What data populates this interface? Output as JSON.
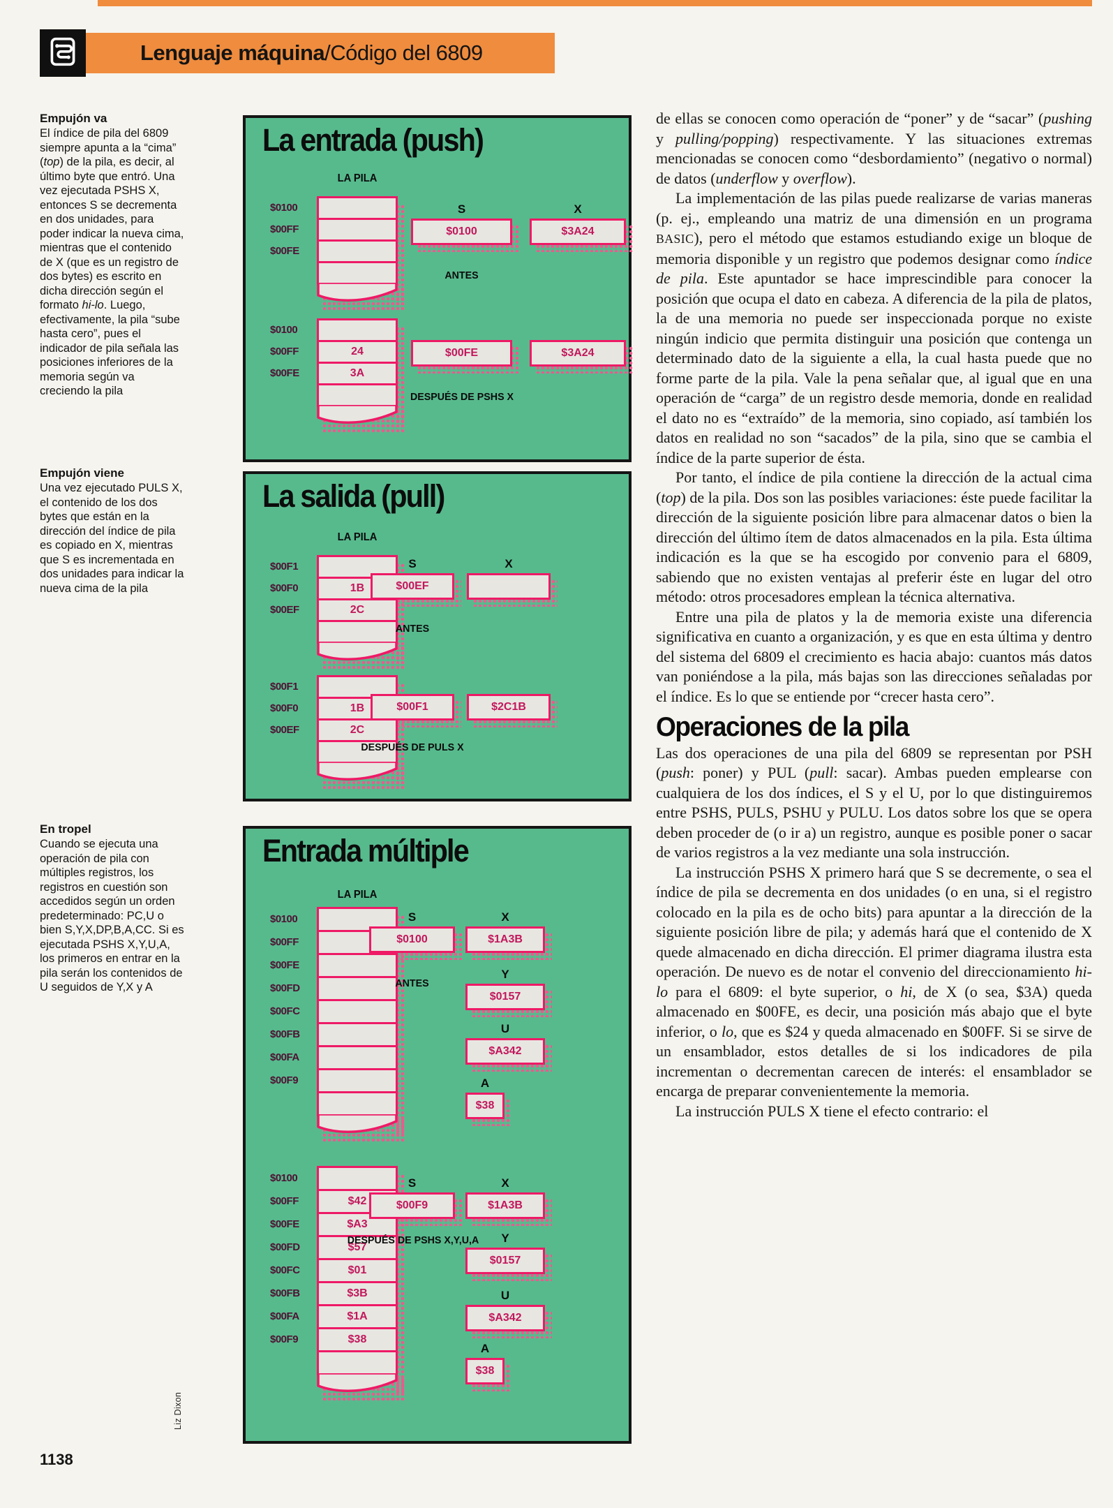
{
  "page": {
    "number": "1138",
    "credit": "Liz Dixon"
  },
  "header": {
    "title_bold": "Lenguaje máquina",
    "title_rest": "/Código del 6809",
    "accent": "#ef8c3e",
    "panel_green": "#57ba8d",
    "diagram_pink": "#ee1a66"
  },
  "sidebar": {
    "notes": [
      {
        "heading": "Empujón va",
        "body": [
          {
            "t": "El índice de pila del 6809 siempre apunta a la “cima” ("
          },
          {
            "t": "top",
            "s": "i"
          },
          {
            "t": ") de la pila, es decir, al último byte que entró. Una vez ejecutada PSHS X, entonces S se decrementa en dos unidades, para poder indicar la nueva cima, mientras que el contenido de X (que es un registro de dos bytes) es escrito en dicha dirección según el formato "
          },
          {
            "t": "hi-lo",
            "s": "i"
          },
          {
            "t": ". Luego, efectivamente, la pila “sube hasta cero”, pues el indicador de pila señala las posiciones inferiores de la memoria según va creciendo la pila"
          }
        ]
      },
      {
        "heading": "Empujón viene",
        "body": [
          {
            "t": "Una vez ejecutado PULS X, el contenido de los dos bytes que están en la dirección del índice de pila es copiado en X, mientras que S es incrementada en dos unidades para indicar la nueva cima de la pila"
          }
        ]
      },
      {
        "heading": "En tropel",
        "body": [
          {
            "t": "Cuando se ejecuta una operación de pila con múltiples registros, los registros en cuestión son accedidos según un orden predeterminado: PC,U o bien S,Y,X,DP,B,A,CC. Si es ejecutada PSHS X,Y,U,A, los primeros en entrar en la pila serán los contenidos de U seguidos de Y,X y A"
          }
        ]
      }
    ]
  },
  "panels": [
    {
      "title": "La entrada (push)",
      "stack_label": "LA PILA",
      "diagrams": [
        {
          "rows": [
            {
              "addr": "$0100",
              "val": ""
            },
            {
              "addr": "$00FF",
              "val": ""
            },
            {
              "addr": "$00FE",
              "val": ""
            },
            {
              "addr": "",
              "val": ""
            }
          ],
          "regs": {
            "s": {
              "name": "S",
              "val": "$0100"
            },
            "x": {
              "name": "X",
              "val": "$3A24"
            }
          },
          "caption": "ANTES"
        },
        {
          "rows": [
            {
              "addr": "$0100",
              "val": ""
            },
            {
              "addr": "$00FF",
              "val": "24"
            },
            {
              "addr": "$00FE",
              "val": "3A"
            },
            {
              "addr": "",
              "val": ""
            }
          ],
          "regs": {
            "s": {
              "val": "$00FE"
            },
            "x": {
              "val": "$3A24"
            }
          },
          "caption": "DESPUÉS DE PSHS X"
        }
      ]
    },
    {
      "title": "La salida (pull)",
      "stack_label": "LA PILA",
      "diagrams": [
        {
          "rows": [
            {
              "addr": "$00F1",
              "val": ""
            },
            {
              "addr": "$00F0",
              "val": "1B"
            },
            {
              "addr": "$00EF",
              "val": "2C"
            },
            {
              "addr": "",
              "val": ""
            }
          ],
          "regs": {
            "s": {
              "name": "S",
              "val": "$00EF"
            },
            "x": {
              "name": "X",
              "val": ""
            }
          },
          "caption": "ANTES"
        },
        {
          "rows": [
            {
              "addr": "$00F1",
              "val": ""
            },
            {
              "addr": "$00F0",
              "val": "1B"
            },
            {
              "addr": "$00EF",
              "val": "2C"
            },
            {
              "addr": "",
              "val": ""
            }
          ],
          "regs": {
            "s": {
              "val": "$00F1"
            },
            "x": {
              "val": "$2C1B"
            }
          },
          "caption": "DESPUÉS DE PULS X"
        }
      ]
    },
    {
      "title": "Entrada múltiple",
      "stack_label": "LA PILA",
      "diagrams": [
        {
          "rows": [
            {
              "addr": "$0100",
              "val": ""
            },
            {
              "addr": "$00FF",
              "val": ""
            },
            {
              "addr": "$00FE",
              "val": ""
            },
            {
              "addr": "$00FD",
              "val": ""
            },
            {
              "addr": "$00FC",
              "val": ""
            },
            {
              "addr": "$00FB",
              "val": ""
            },
            {
              "addr": "$00FA",
              "val": ""
            },
            {
              "addr": "$00F9",
              "val": ""
            },
            {
              "addr": "",
              "val": ""
            }
          ],
          "regs": {
            "s": {
              "name": "S",
              "val": "$0100"
            },
            "x": {
              "name": "X",
              "val": "$1A3B"
            },
            "y": {
              "name": "Y",
              "val": "$0157"
            },
            "u": {
              "name": "U",
              "val": "$A342"
            },
            "a": {
              "name": "A",
              "val": "$38"
            }
          },
          "caption": "ANTES"
        },
        {
          "rows": [
            {
              "addr": "$0100",
              "val": ""
            },
            {
              "addr": "$00FF",
              "val": "$42"
            },
            {
              "addr": "$00FE",
              "val": "$A3"
            },
            {
              "addr": "$00FD",
              "val": "$57"
            },
            {
              "addr": "$00FC",
              "val": "$01"
            },
            {
              "addr": "$00FB",
              "val": "$3B"
            },
            {
              "addr": "$00FA",
              "val": "$1A"
            },
            {
              "addr": "$00F9",
              "val": "$38"
            },
            {
              "addr": "",
              "val": ""
            }
          ],
          "regs": {
            "s": {
              "name": "S",
              "val": "$00F9"
            },
            "x": {
              "name": "X",
              "val": "$1A3B"
            },
            "y": {
              "name": "Y",
              "val": "$0157"
            },
            "u": {
              "name": "U",
              "val": "$A342"
            },
            "a": {
              "name": "A",
              "val": "$38"
            }
          },
          "caption": "DESPUÉS DE PSHS X,Y,U,A"
        }
      ]
    }
  ],
  "article": {
    "paragraphs": [
      [
        {
          "t": "de ellas se conocen como operación de “poner” y de “sacar” ("
        },
        {
          "t": "pushing",
          "s": "i"
        },
        {
          "t": " y "
        },
        {
          "t": "pulling/popping",
          "s": "i"
        },
        {
          "t": ") respectivamente. Y las situaciones extremas mencionadas se conocen como “desbordamiento” (negativo o normal) de datos ("
        },
        {
          "t": "underflow",
          "s": "i"
        },
        {
          "t": " y "
        },
        {
          "t": "overflow",
          "s": "i"
        },
        {
          "t": ")."
        }
      ],
      [
        {
          "t": "La implementación de las pilas puede realizarse de varias maneras (p. ej., empleando una matriz de una dimensión en un programa "
        },
        {
          "t": "BASIC",
          "s": "sc"
        },
        {
          "t": "), pero el método que estamos estudiando exige un bloque de memoria disponible y un registro que podemos designar como "
        },
        {
          "t": "índice de pila",
          "s": "i"
        },
        {
          "t": ". Este apuntador se hace imprescindible para conocer la posición que ocupa el dato en cabeza. A diferencia de la pila de platos, la de una memoria no puede ser inspeccionada porque no existe ningún indicio que permita distinguir una posición que contenga un determinado dato de la siguiente a ella, la cual hasta puede que no forme parte de la pila. Vale la pena señalar que, al igual que en una operación de “carga” de un registro desde memoria, donde en realidad el dato no es “extraído” de la memoria, sino copiado, así también los datos en realidad no son “sacados” de la pila, sino que se cambia el índice de la parte superior de ésta."
        }
      ],
      [
        {
          "t": "Por tanto, el índice de pila contiene la dirección de la actual cima ("
        },
        {
          "t": "top",
          "s": "i"
        },
        {
          "t": ") de la pila. Dos son las posibles variaciones: éste puede facilitar la dirección de la siguiente posición libre para almacenar datos o bien la dirección del último ítem de datos almacenados en la pila. Esta última indicación es la que se ha escogido por convenio para el 6809, sabiendo que no existen ventajas al preferir éste en lugar del otro método: otros procesadores emplean la técnica alternativa."
        }
      ],
      [
        {
          "t": "Entre una pila de platos y la de memoria existe una diferencia significativa en cuanto a organización, y es que en esta última y dentro del sistema del 6809 el crecimiento es hacia abajo: cuantos más datos van poniéndose a la pila, más bajas son las direcciones señaladas por el índice. Es lo que se entiende por “crecer hasta cero”."
        }
      ]
    ],
    "heading": "Operaciones de la pila",
    "paragraphs2": [
      [
        {
          "t": "Las dos operaciones de una pila del 6809 se representan por PSH ("
        },
        {
          "t": "push",
          "s": "i"
        },
        {
          "t": ": poner) y PUL ("
        },
        {
          "t": "pull",
          "s": "i"
        },
        {
          "t": ": sacar). Ambas pueden emplearse con cualquiera de los dos índices, el S y el U, por lo que distinguiremos entre PSHS, PULS, PSHU y PULU. Los datos sobre los que se opera deben proceder de (o ir a) un registro, aunque es posible poner o sacar de varios registros a la vez mediante una sola instrucción."
        }
      ],
      [
        {
          "t": "La instrucción PSHS X primero hará que S se decremente, o sea el índice de pila se decrementa en dos unidades (o en una, si el registro colocado en la pila es de ocho bits) para apuntar a la dirección de la siguiente posición libre de pila; y además hará que el contenido de X quede almacenado en dicha dirección. El primer diagrama ilustra esta operación. De nuevo es de notar el convenio del direccionamiento "
        },
        {
          "t": "hi-lo",
          "s": "i"
        },
        {
          "t": " para el 6809: el byte superior, o "
        },
        {
          "t": "hi",
          "s": "i"
        },
        {
          "t": ", de X (o sea, $3A) queda almacenado en $00FE, es decir, una posición más abajo que el byte inferior, o "
        },
        {
          "t": "lo",
          "s": "i"
        },
        {
          "t": ", que es $24 y queda almacenado en $00FF. Si se sirve de un ensamblador, estos detalles de si los indicadores de pila incrementan o decrementan carecen de interés: el ensamblador se encarga de preparar convenientemente la memoria."
        }
      ],
      [
        {
          "t": "La instrucción PULS X tiene el efecto contrario: el"
        }
      ]
    ]
  }
}
